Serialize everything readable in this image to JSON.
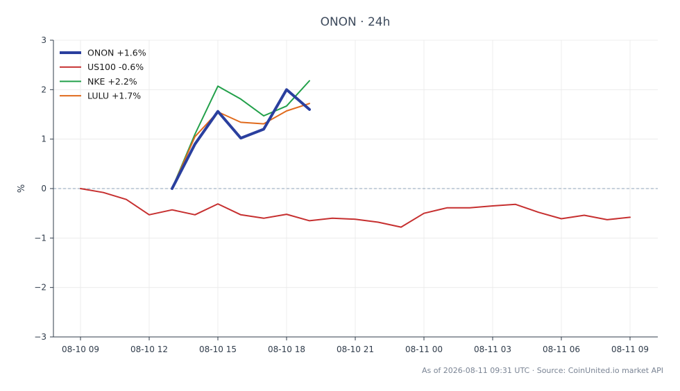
{
  "chart_data": {
    "type": "line",
    "title": "ONON · 24h",
    "xlabel": "",
    "ylabel": "%",
    "ylim": [
      -3,
      3
    ],
    "yticks": [
      "−3",
      "−2",
      "−1",
      "0",
      "1",
      "2",
      "3"
    ],
    "yticks_values": [
      -3,
      -2,
      -1,
      0,
      1,
      2,
      3
    ],
    "xtick_labels": [
      "08-10 09",
      "08-10 12",
      "08-10 15",
      "08-10 18",
      "08-10 21",
      "08-11 00",
      "08-11 03",
      "08-11 06",
      "08-11 09"
    ],
    "x_start": "2026-08-10 09:00",
    "x_end": "2026-08-11 09:00",
    "grid": true,
    "legend_position": "top-left",
    "zero_line": true,
    "series": [
      {
        "name": "ONON +1.6%",
        "color": "#2a3f9e",
        "emphasis": true,
        "points": [
          [
            "2026-08-10 13:00",
            0.0
          ],
          [
            "2026-08-10 14:00",
            0.9
          ],
          [
            "2026-08-10 15:00",
            1.56
          ],
          [
            "2026-08-10 16:00",
            1.02
          ],
          [
            "2026-08-10 17:00",
            1.2
          ],
          [
            "2026-08-10 18:00",
            2.0
          ],
          [
            "2026-08-10 19:00",
            1.6
          ]
        ]
      },
      {
        "name": "US100 -0.6%",
        "color": "#c62f2f",
        "emphasis": false,
        "points": [
          [
            "2026-08-10 09:00",
            0.0
          ],
          [
            "2026-08-10 10:00",
            -0.08
          ],
          [
            "2026-08-10 11:00",
            -0.22
          ],
          [
            "2026-08-10 12:00",
            -0.53
          ],
          [
            "2026-08-10 13:00",
            -0.43
          ],
          [
            "2026-08-10 14:00",
            -0.53
          ],
          [
            "2026-08-10 15:00",
            -0.31
          ],
          [
            "2026-08-10 16:00",
            -0.53
          ],
          [
            "2026-08-10 17:00",
            -0.6
          ],
          [
            "2026-08-10 18:00",
            -0.52
          ],
          [
            "2026-08-10 19:00",
            -0.65
          ],
          [
            "2026-08-10 20:00",
            -0.6
          ],
          [
            "2026-08-10 21:00",
            -0.62
          ],
          [
            "2026-08-10 22:00",
            -0.68
          ],
          [
            "2026-08-10 23:00",
            -0.78
          ],
          [
            "2026-08-11 00:00",
            -0.5
          ],
          [
            "2026-08-11 01:00",
            -0.39
          ],
          [
            "2026-08-11 02:00",
            -0.39
          ],
          [
            "2026-08-11 03:00",
            -0.35
          ],
          [
            "2026-08-11 04:00",
            -0.32
          ],
          [
            "2026-08-11 05:00",
            -0.48
          ],
          [
            "2026-08-11 06:00",
            -0.61
          ],
          [
            "2026-08-11 07:00",
            -0.54
          ],
          [
            "2026-08-11 08:00",
            -0.63
          ],
          [
            "2026-08-11 09:00",
            -0.58
          ]
        ]
      },
      {
        "name": "NKE +2.2%",
        "color": "#22a04a",
        "emphasis": false,
        "points": [
          [
            "2026-08-10 13:00",
            0.0
          ],
          [
            "2026-08-10 14:00",
            1.1
          ],
          [
            "2026-08-10 15:00",
            2.07
          ],
          [
            "2026-08-10 16:00",
            1.81
          ],
          [
            "2026-08-10 17:00",
            1.47
          ],
          [
            "2026-08-10 18:00",
            1.67
          ],
          [
            "2026-08-10 19:00",
            2.18
          ]
        ]
      },
      {
        "name": "LULU +1.7%",
        "color": "#e06a1c",
        "emphasis": false,
        "points": [
          [
            "2026-08-10 13:00",
            0.0
          ],
          [
            "2026-08-10 14:00",
            1.05
          ],
          [
            "2026-08-10 15:00",
            1.55
          ],
          [
            "2026-08-10 16:00",
            1.34
          ],
          [
            "2026-08-10 17:00",
            1.31
          ],
          [
            "2026-08-10 18:00",
            1.57
          ],
          [
            "2026-08-10 19:00",
            1.72
          ]
        ]
      }
    ]
  },
  "footer": "As of 2026-08-11 09:31 UTC · Source: CoinUnited.io market API"
}
